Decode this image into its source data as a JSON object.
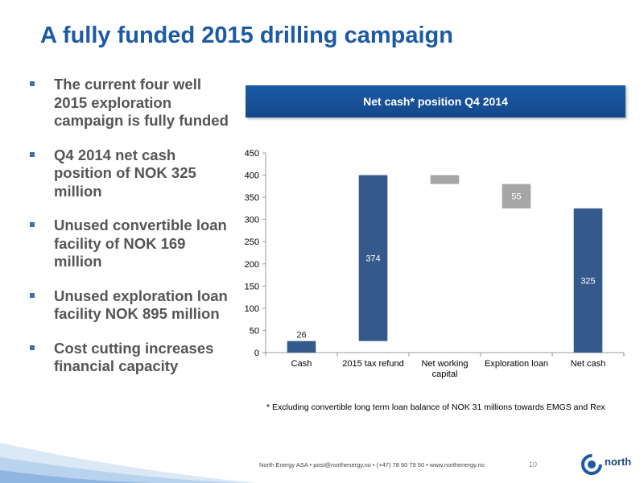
{
  "slide": {
    "title": "A fully funded 2015 drilling campaign",
    "bullets": [
      "The current four well 2015 exploration campaign is fully funded",
      "Q4 2014 net cash position of NOK 325 million",
      "Unused convertible loan facility of NOK 169 million",
      "Unused exploration loan facility NOK 895 million",
      "Cost cutting increases financial capacity"
    ],
    "chart_header": "Net cash* position Q4 2014",
    "footnote": "* Excluding convertible long term loan balance of NOK 31 millions towards EMGS and Rex",
    "footer": "North Energy ASA  •  post@northenergy.no  •  (+47) 78 60 79 50  •  www.northenergy.no",
    "page_number": "10",
    "logo_text": "north"
  },
  "chart_data": {
    "type": "bar",
    "subtype": "waterfall",
    "title": "Net cash* position Q4 2014",
    "categories": [
      "Cash",
      "2015 tax refund",
      "Net working capital",
      "Exploration loan",
      "Net cash"
    ],
    "category_lines": [
      [
        "Cash"
      ],
      [
        "2015 tax refund"
      ],
      [
        "Net working",
        "capital"
      ],
      [
        "Exploration loan"
      ],
      [
        "Net cash"
      ]
    ],
    "bars": [
      {
        "category": "Cash",
        "bottom": 0,
        "top": 26,
        "label": "26",
        "kind": "total"
      },
      {
        "category": "2015 tax refund",
        "bottom": 26,
        "top": 400,
        "label": "374",
        "kind": "increase"
      },
      {
        "category": "Net working capital",
        "bottom": 380,
        "top": 400,
        "label": "",
        "kind": "decrease"
      },
      {
        "category": "Exploration loan",
        "bottom": 325,
        "top": 380,
        "label": "55",
        "kind": "decrease"
      },
      {
        "category": "Net cash",
        "bottom": 0,
        "top": 325,
        "label": "325",
        "kind": "total"
      }
    ],
    "ylim": [
      0,
      450
    ],
    "yticks": [
      0,
      50,
      100,
      150,
      200,
      250,
      300,
      350,
      400,
      450
    ],
    "xlabel": "",
    "ylabel": "",
    "grid": false,
    "colors": {
      "total": "#36598c",
      "increase": "#36598c",
      "decrease": "#a6a6a6",
      "label_on_dark": "#ffffff",
      "label_on_light": "#222222"
    }
  }
}
